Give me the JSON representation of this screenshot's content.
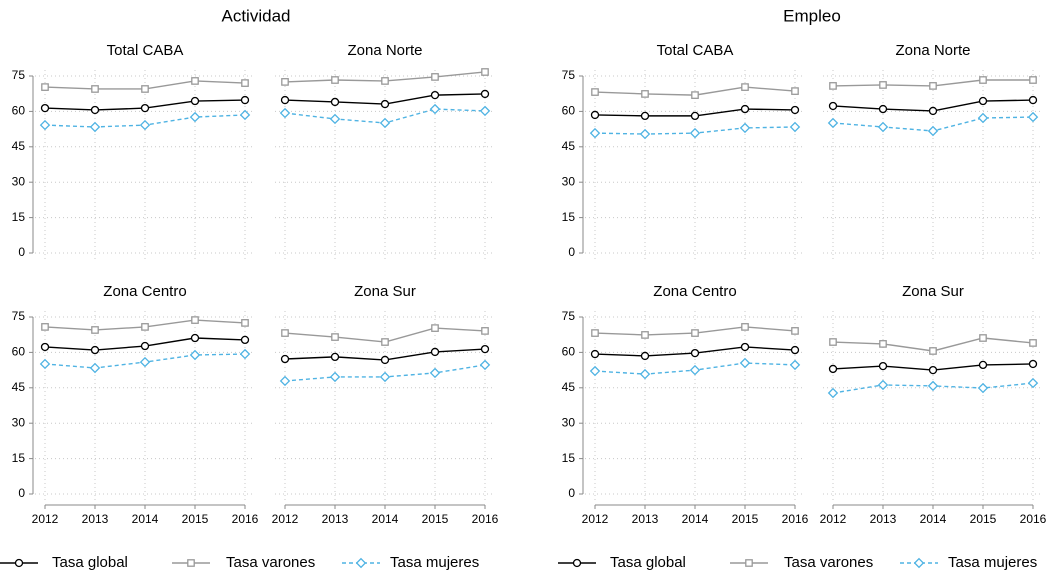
{
  "chart_data": [
    {
      "type": "line",
      "title": "Actividad",
      "x": [
        2012,
        2013,
        2014,
        2015,
        2016
      ],
      "xlim": [
        2012,
        2016
      ],
      "ylim": [
        0,
        75
      ],
      "yticks": [
        0,
        15,
        30,
        45,
        60,
        75
      ],
      "grid": true,
      "series": [
        {
          "name": "Tasa global",
          "color": "#000000",
          "marker": "circle",
          "dash": false
        },
        {
          "name": "Tasa varones",
          "color": "#999999",
          "marker": "square",
          "dash": false
        },
        {
          "name": "Tasa mujeres",
          "color": "#4fb3e3",
          "marker": "diamond",
          "dash": true
        }
      ],
      "panels": [
        {
          "title": "Total CABA",
          "values": [
            [
              61.4,
              60.6,
              61.4,
              64.4,
              64.8
            ],
            [
              70.3,
              69.5,
              69.5,
              72.9,
              72.0
            ],
            [
              54.2,
              53.4,
              54.2,
              57.6,
              58.5
            ]
          ]
        },
        {
          "title": "Zona Norte",
          "values": [
            [
              64.8,
              64.0,
              63.1,
              66.9,
              67.4
            ],
            [
              72.5,
              73.3,
              72.9,
              74.6,
              76.7
            ],
            [
              59.3,
              56.8,
              55.1,
              61.0,
              60.2
            ]
          ]
        },
        {
          "title": "Zona Centro",
          "values": [
            [
              62.3,
              61.0,
              62.7,
              66.1,
              65.3
            ],
            [
              70.8,
              69.5,
              70.8,
              73.7,
              72.5
            ],
            [
              55.1,
              53.4,
              55.9,
              58.9,
              59.3
            ]
          ]
        },
        {
          "title": "Zona Sur",
          "values": [
            [
              57.2,
              58.1,
              56.8,
              60.2,
              61.4
            ],
            [
              68.2,
              66.5,
              64.4,
              70.3,
              69.1
            ],
            [
              47.9,
              49.6,
              49.6,
              51.3,
              54.7
            ]
          ]
        }
      ]
    },
    {
      "type": "line",
      "title": "Empleo",
      "x": [
        2012,
        2013,
        2014,
        2015,
        2016
      ],
      "xlim": [
        2012,
        2016
      ],
      "ylim": [
        0,
        75
      ],
      "yticks": [
        0,
        15,
        30,
        45,
        60,
        75
      ],
      "grid": true,
      "series": [
        {
          "name": "Tasa global",
          "color": "#000000",
          "marker": "circle",
          "dash": false
        },
        {
          "name": "Tasa varones",
          "color": "#999999",
          "marker": "square",
          "dash": false
        },
        {
          "name": "Tasa mujeres",
          "color": "#4fb3e3",
          "marker": "diamond",
          "dash": true
        }
      ],
      "panels": [
        {
          "title": "Total CABA",
          "values": [
            [
              58.5,
              58.1,
              58.1,
              61.0,
              60.6
            ],
            [
              68.2,
              67.4,
              66.9,
              70.3,
              68.6
            ],
            [
              50.8,
              50.4,
              50.8,
              53.0,
              53.4
            ]
          ]
        },
        {
          "title": "Zona Norte",
          "values": [
            [
              62.3,
              61.0,
              60.2,
              64.4,
              64.8
            ],
            [
              70.8,
              71.2,
              70.8,
              73.3,
              73.3
            ],
            [
              55.1,
              53.4,
              51.7,
              57.2,
              57.6
            ]
          ]
        },
        {
          "title": "Zona Centro",
          "values": [
            [
              59.3,
              58.5,
              59.7,
              62.3,
              61.0
            ],
            [
              68.2,
              67.4,
              68.2,
              70.8,
              69.1
            ],
            [
              52.1,
              50.8,
              52.5,
              55.5,
              54.7
            ]
          ]
        },
        {
          "title": "Zona Sur",
          "values": [
            [
              53.0,
              54.2,
              52.5,
              54.7,
              55.1
            ],
            [
              64.4,
              63.6,
              60.6,
              66.1,
              64.0
            ],
            [
              42.8,
              46.2,
              45.8,
              44.9,
              47.0
            ]
          ]
        }
      ]
    }
  ]
}
